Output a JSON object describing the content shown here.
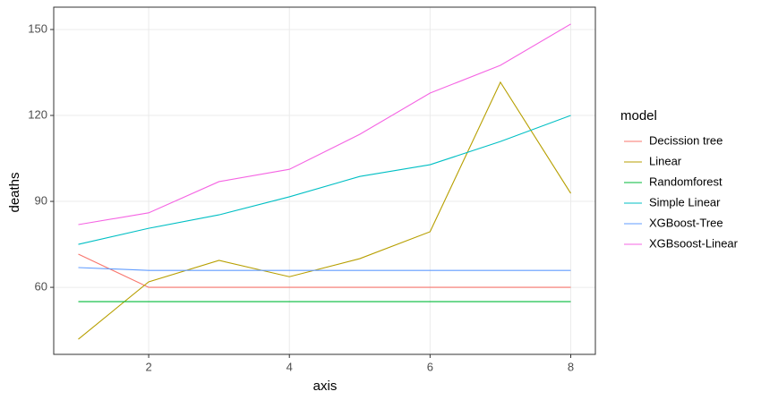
{
  "chart_data": {
    "type": "line",
    "x_label": "axis",
    "y_label": "deaths",
    "legend_title": "model",
    "legend": "right",
    "grid": true,
    "x": [
      1,
      2,
      3,
      4,
      5,
      6,
      7,
      8
    ],
    "xlim": [
      0.65,
      8.35
    ],
    "xticks": [
      2,
      4,
      6,
      8
    ],
    "ylim": [
      36.6,
      157.8
    ],
    "yticks": [
      60,
      90,
      120,
      150
    ],
    "series": [
      {
        "name": "Decission tree",
        "color": "#F8766D",
        "values": [
          71.6,
          60,
          60,
          60,
          60,
          60,
          60,
          60
        ]
      },
      {
        "name": "Linear",
        "color": "#B79F00",
        "values": [
          41.9,
          61.9,
          69.4,
          63.7,
          70,
          79.4,
          131.6,
          92.8
        ]
      },
      {
        "name": "Randomforest",
        "color": "#00BA38",
        "values": [
          55,
          55,
          55,
          55,
          55,
          55,
          55,
          55
        ]
      },
      {
        "name": "Simple Linear",
        "color": "#00BFC4",
        "values": [
          75,
          80.6,
          85.3,
          91.6,
          98.7,
          102.8,
          110.9,
          120
        ]
      },
      {
        "name": "XGBoost-Tree",
        "color": "#619CFF",
        "values": [
          66.9,
          65.9,
          65.9,
          65.9,
          65.9,
          65.9,
          65.9,
          65.9
        ]
      },
      {
        "name": "XGBsoost-Linear",
        "color": "#F564E3",
        "values": [
          81.9,
          86,
          96.9,
          101.2,
          113.4,
          127.8,
          137.5,
          151.9
        ]
      }
    ]
  }
}
